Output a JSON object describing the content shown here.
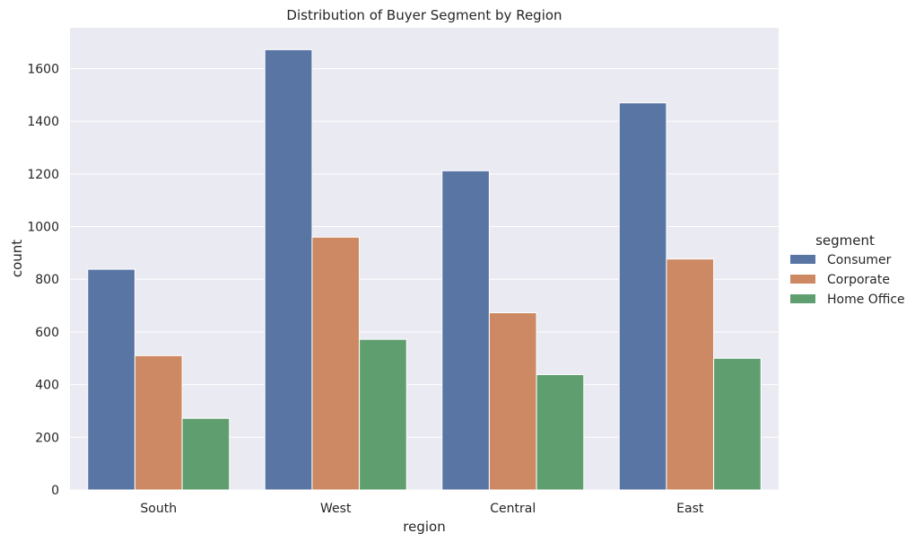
{
  "chart_data": {
    "type": "bar",
    "title": "Distribution of Buyer Segment by Region",
    "xlabel": "region",
    "ylabel": "count",
    "categories": [
      "South",
      "West",
      "Central",
      "East"
    ],
    "series": [
      {
        "name": "Consumer",
        "values": [
          838,
          1672,
          1212,
          1470
        ],
        "color": "#5875a4"
      },
      {
        "name": "Corporate",
        "values": [
          510,
          960,
          673,
          877
        ],
        "color": "#cc8963"
      },
      {
        "name": "Home Office",
        "values": [
          272,
          572,
          438,
          500
        ],
        "color": "#5f9e6e"
      }
    ],
    "ylim": [
      0,
      1755
    ],
    "yticks": [
      0,
      200,
      400,
      600,
      800,
      1000,
      1200,
      1400,
      1600
    ],
    "grid": true,
    "legend": {
      "title": "segment",
      "placement": "right"
    },
    "colors": {
      "plot_background": "#eaeaf2",
      "grid": "#ffffff"
    }
  }
}
